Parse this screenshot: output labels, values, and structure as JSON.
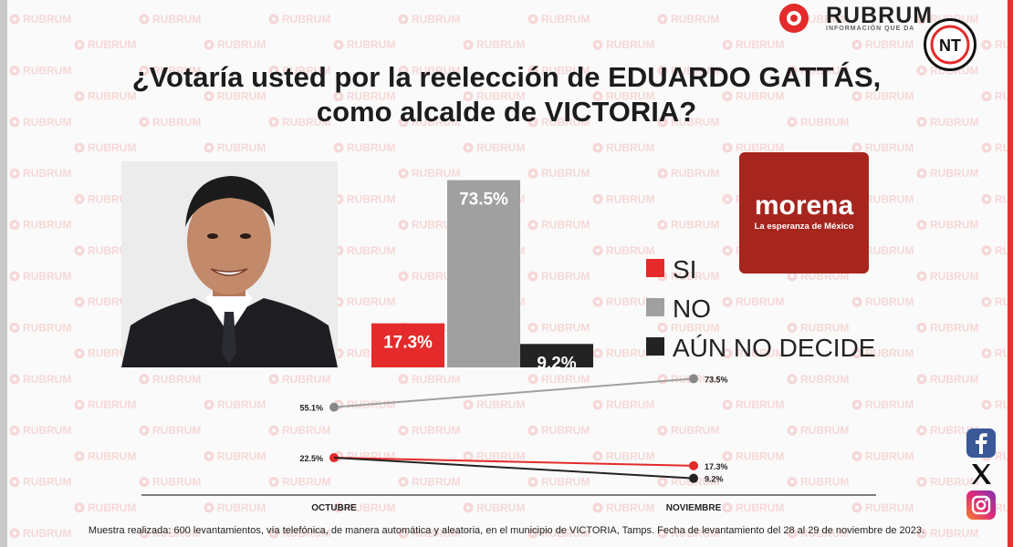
{
  "brand": {
    "name": "RUBRUM",
    "tagline": "INFORMACIÓN QUE DA",
    "badge": "NT",
    "watermark": "RUBRUM"
  },
  "title": {
    "line1": "¿Votaría usted por la reelección de EDUARDO GATTÁS,",
    "line2": "como alcalde de VICTORIA?"
  },
  "party": {
    "name": "morena",
    "slogan": "La esperanza de México",
    "color": "#a6261f"
  },
  "colors": {
    "si": "#e42a2a",
    "no": "#a0a0a0",
    "aun": "#232323",
    "bg": "#fafafa"
  },
  "chart_data": [
    {
      "type": "bar",
      "categories": [
        "SI",
        "NO",
        "AÚN NO DECIDE"
      ],
      "values": [
        17.3,
        73.5,
        9.2
      ],
      "value_labels": [
        "17.3%",
        "73.5%",
        "9.2%"
      ],
      "title": "¿Votaría usted por la reelección de EDUARDO GATTÁS, como alcalde de VICTORIA?",
      "ylim": [
        0,
        80
      ],
      "legend": [
        "SI",
        "NO",
        "AÚN NO DECIDE"
      ],
      "legend_position": "right",
      "grid": false
    },
    {
      "type": "line",
      "categories": [
        "OCTUBRE",
        "NOVIEMBRE"
      ],
      "series": [
        {
          "values": [
            55.1,
            73.5
          ],
          "labels": [
            "55.1%",
            "73.5%"
          ],
          "color": "#a0a0a0"
        },
        {
          "values": [
            22.5,
            17.3
          ],
          "labels": [
            "22.5%",
            "17.3%"
          ],
          "color": "#e42a2a"
        },
        {
          "values": [
            22.5,
            9.2
          ],
          "labels": [
            "",
            "9.2%"
          ],
          "color": "#232323"
        }
      ],
      "grid": false
    }
  ],
  "footer": {
    "note": "Muestra realizada: 600 levantamientos, vía telefónica, de manera automática y aleatoria, en el municipio de VICTORIA, Tamps. Fecha de levantamiento del 28 al 29 de noviembre de 2023."
  },
  "social": [
    {
      "name": "facebook-icon"
    },
    {
      "name": "x-icon"
    },
    {
      "name": "instagram-icon"
    }
  ]
}
